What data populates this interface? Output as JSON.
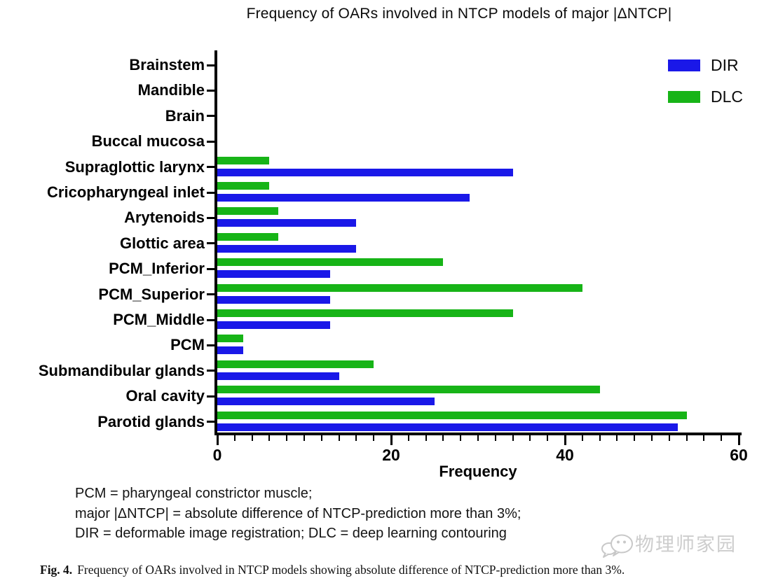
{
  "title": "Frequency of OARs involved in NTCP models of major |ΔNTCP|",
  "chart_data": {
    "type": "bar",
    "orientation": "horizontal",
    "title": "Frequency of OARs involved in NTCP models of major |ΔNTCP|",
    "xlabel": "Frequency",
    "xlim": [
      0,
      60
    ],
    "xticks": [
      0,
      20,
      40,
      60
    ],
    "minor_tick_step": 2,
    "grid": false,
    "legend_position": "top-right",
    "categories": [
      "Brainstem",
      "Mandible",
      "Brain",
      "Buccal mucosa",
      "Supraglottic larynx",
      "Cricopharyngeal inlet",
      "Arytenoids",
      "Glottic area",
      "PCM_Inferior",
      "PCM_Superior",
      "PCM_Middle",
      "PCM",
      "Submandibular glands",
      "Oral cavity",
      "Parotid glands"
    ],
    "series": [
      {
        "name": "DIR",
        "color": "#1a18e8",
        "values": [
          0,
          0,
          0,
          0,
          34,
          29,
          16,
          16,
          13,
          13,
          13,
          3,
          14,
          25,
          53
        ]
      },
      {
        "name": "DLC",
        "color": "#17b417",
        "values": [
          0,
          0,
          0,
          0,
          6,
          6,
          7,
          7,
          26,
          42,
          34,
          3,
          18,
          44,
          54
        ]
      }
    ]
  },
  "footnotes": [
    "PCM = pharyngeal constrictor muscle;",
    "major |ΔNTCP| = absolute difference of NTCP-prediction more than 3%;",
    "DIR = deformable image registration; DLC = deep learning contouring"
  ],
  "watermark": {
    "icon": "wechat-icon",
    "text": "物理师家园"
  },
  "caption": {
    "label": "Fig. 4.",
    "text": "Frequency of OARs involved in NTCP models showing absolute difference of NTCP-prediction more than 3%."
  }
}
